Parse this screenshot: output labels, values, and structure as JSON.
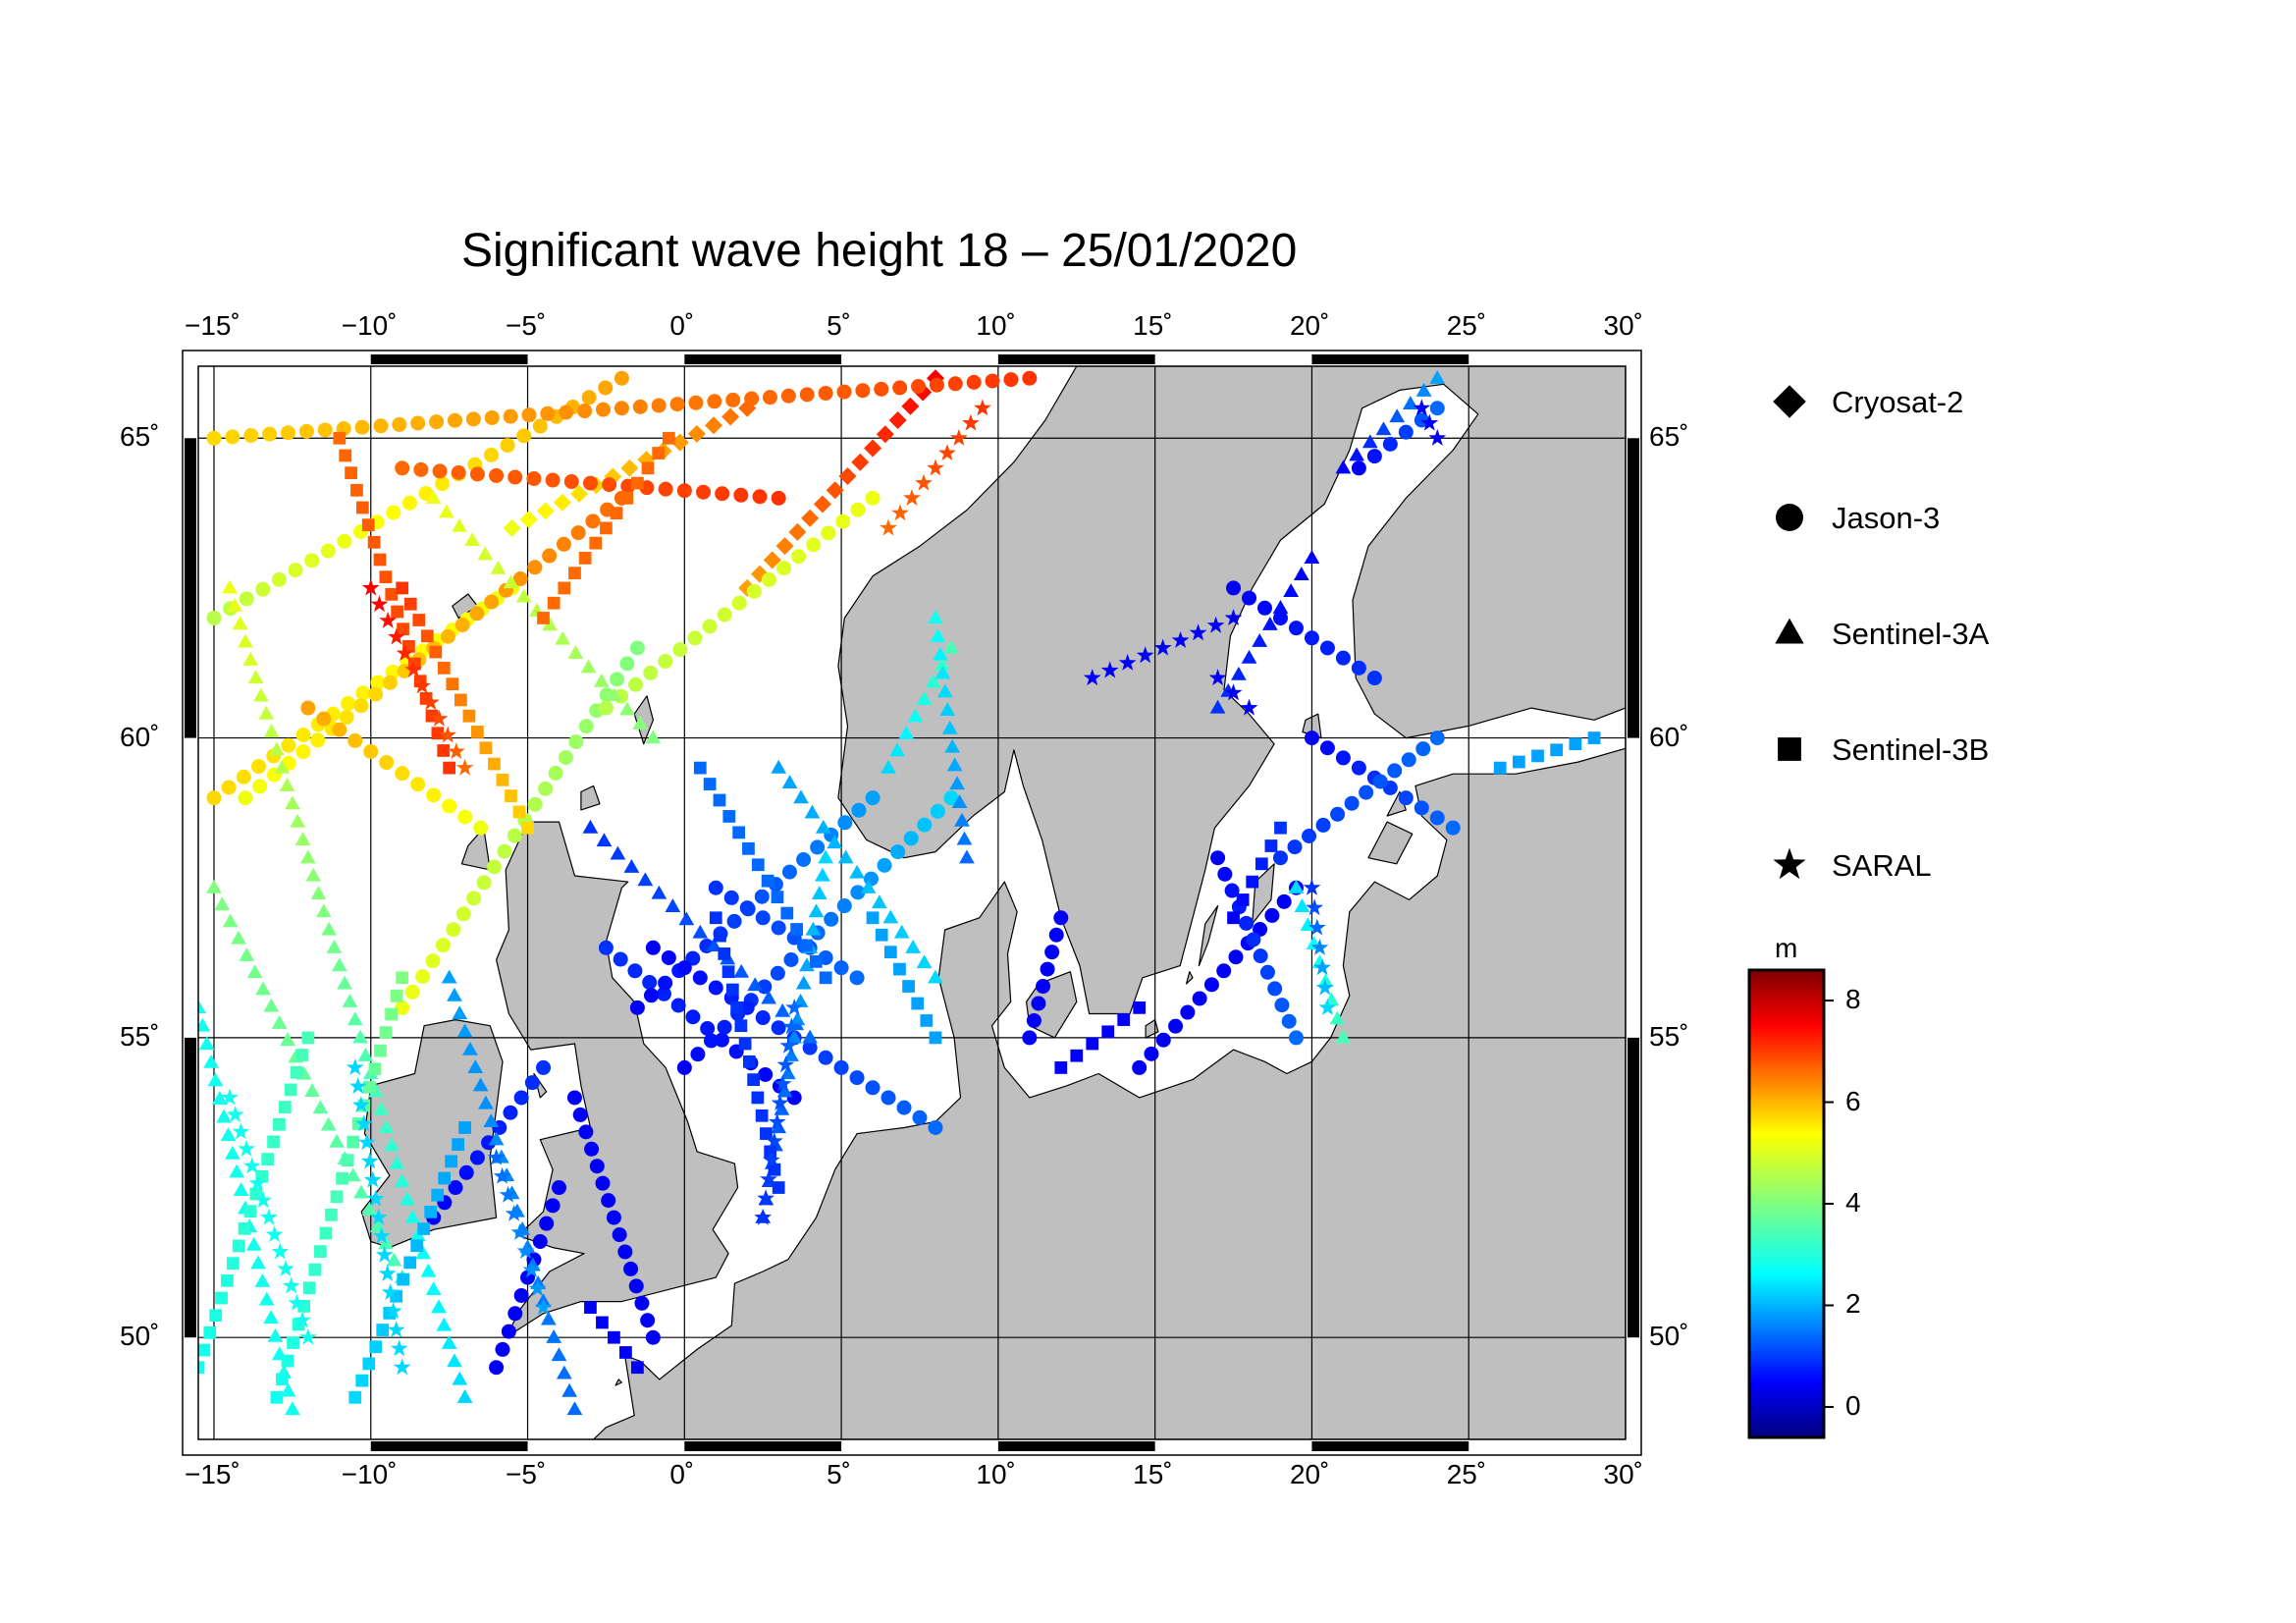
{
  "title": "Significant wave height 18 – 25/01/2020",
  "map": {
    "lon_range": [
      -15.5,
      30.0
    ],
    "lat_range": [
      48.3,
      66.2
    ],
    "lon_ticks": [
      -15,
      -10,
      -5,
      0,
      5,
      10,
      15,
      20,
      25,
      30
    ],
    "lat_ticks": [
      50,
      55,
      60,
      65
    ],
    "lon_tick_labels": [
      "−15˚",
      "−10˚",
      "−5˚",
      "0˚",
      "5˚",
      "10˚",
      "15˚",
      "20˚",
      "25˚",
      "30˚"
    ],
    "lat_tick_labels": [
      "50˚",
      "55˚",
      "60˚",
      "65˚"
    ],
    "land_color": "#bfbfbf",
    "sea_color": "#ffffff",
    "frame_color": "#000000",
    "grid": true
  },
  "legend": {
    "items": [
      {
        "label": "Cryosat-2",
        "marker": "diamond"
      },
      {
        "label": "Jason-3",
        "marker": "circle"
      },
      {
        "label": "Sentinel-3A",
        "marker": "triangle"
      },
      {
        "label": "Sentinel-3B",
        "marker": "square"
      },
      {
        "label": "SARAL",
        "marker": "star"
      }
    ]
  },
  "colorbar": {
    "unit": "m",
    "min": -0.6,
    "max": 8.6,
    "ticks": [
      0,
      2,
      4,
      6,
      8
    ],
    "tick_labels": [
      "0",
      "2",
      "4",
      "6",
      "8"
    ],
    "colormap": "jet"
  },
  "chart_data": {
    "type": "scatter",
    "title": "Significant wave height 18 – 25/01/2020",
    "value_unit": "m",
    "series": [
      {
        "name": "Cryosat-2",
        "marker": "diamond",
        "tracks": [
          {
            "from": [
              2.0,
              62.5
            ],
            "to": [
              8.0,
              66.0
            ],
            "hs": [
              6.0,
              7.5
            ]
          },
          {
            "from": [
              -5.5,
              63.5
            ],
            "to": [
              2.0,
              65.5
            ],
            "hs": [
              5.0,
              6.5
            ]
          }
        ]
      },
      {
        "name": "Jason-3",
        "marker": "circle",
        "tracks": [
          {
            "from": [
              -15.0,
              59.0
            ],
            "to": [
              -5.5,
              62.5
            ],
            "hs": [
              5.5,
              5.0
            ]
          },
          {
            "from": [
              -15.0,
              62.0
            ],
            "to": [
              -2.0,
              66.0
            ],
            "hs": [
              4.5,
              6.0
            ]
          },
          {
            "from": [
              -15.0,
              65.0
            ],
            "to": [
              11.0,
              66.0
            ],
            "hs": [
              5.5,
              7.0
            ]
          },
          {
            "from": [
              -9.0,
              64.5
            ],
            "to": [
              3.0,
              64.0
            ],
            "hs": [
              6.5,
              7.0
            ]
          },
          {
            "from": [
              -14.0,
              59.0
            ],
            "to": [
              -2.0,
              64.0
            ],
            "hs": [
              5.0,
              6.5
            ]
          },
          {
            "from": [
              -12.0,
              60.5
            ],
            "to": [
              -6.5,
              58.5
            ],
            "hs": [
              6.0,
              5.0
            ]
          },
          {
            "from": [
              -9.0,
              55.5
            ],
            "to": [
              -1.5,
              61.5
            ],
            "hs": [
              5.0,
              4.0
            ]
          },
          {
            "from": [
              -2.5,
              60.5
            ],
            "to": [
              6.0,
              64.0
            ],
            "hs": [
              4.5,
              5.0
            ]
          },
          {
            "from": [
              -2.5,
              56.5
            ],
            "to": [
              3.5,
              54.0
            ],
            "hs": [
              1.0,
              0.5
            ]
          },
          {
            "from": [
              -1.5,
              55.5
            ],
            "to": [
              6.0,
              59.0
            ],
            "hs": [
              0.5,
              2.0
            ]
          },
          {
            "from": [
              0.0,
              54.5
            ],
            "to": [
              8.5,
              59.0
            ],
            "hs": [
              0.5,
              2.5
            ]
          },
          {
            "from": [
              -1.0,
              56.5
            ],
            "to": [
              8.0,
              53.5
            ],
            "hs": [
              0.5,
              1.5
            ]
          },
          {
            "from": [
              1.0,
              57.5
            ],
            "to": [
              5.5,
              56.0
            ],
            "hs": [
              1.0,
              1.5
            ]
          },
          {
            "from": [
              -8.0,
              52.0
            ],
            "to": [
              -4.5,
              54.5
            ],
            "hs": [
              0.5,
              1.0
            ]
          },
          {
            "from": [
              -6.0,
              49.5
            ],
            "to": [
              -4.0,
              52.5
            ],
            "hs": [
              0.5,
              0.5
            ]
          },
          {
            "from": [
              11.0,
              55.0
            ],
            "to": [
              12.0,
              57.0
            ],
            "hs": [
              0.5,
              0.5
            ]
          },
          {
            "from": [
              14.5,
              54.5
            ],
            "to": [
              19.5,
              57.5
            ],
            "hs": [
              0.5,
              0.5
            ]
          },
          {
            "from": [
              17.0,
              58.0
            ],
            "to": [
              19.5,
              55.0
            ],
            "hs": [
              0.5,
              1.5
            ]
          },
          {
            "from": [
              17.5,
              62.5
            ],
            "to": [
              22.0,
              61.0
            ],
            "hs": [
              0.5,
              1.0
            ]
          },
          {
            "from": [
              20.0,
              60.0
            ],
            "to": [
              24.5,
              58.5
            ],
            "hs": [
              0.5,
              1.5
            ]
          },
          {
            "from": [
              21.5,
              64.5
            ],
            "to": [
              24.0,
              65.5
            ],
            "hs": [
              0.5,
              1.5
            ]
          },
          {
            "from": [
              19.0,
              58.0
            ],
            "to": [
              24.0,
              60.0
            ],
            "hs": [
              1.0,
              1.5
            ]
          },
          {
            "from": [
              -3.5,
              54.0
            ],
            "to": [
              -1.0,
              50.0
            ],
            "hs": [
              0.5,
              0.5
            ]
          }
        ]
      },
      {
        "name": "Sentinel-3A",
        "marker": "triangle",
        "tracks": [
          {
            "from": [
              -15.0,
              57.5
            ],
            "to": [
              -9.0,
              51.0
            ],
            "hs": [
              4.0,
              3.5
            ]
          },
          {
            "from": [
              -15.5,
              55.5
            ],
            "to": [
              -12.5,
              48.8
            ],
            "hs": [
              3.0,
              3.0
            ]
          },
          {
            "from": [
              -14.5,
              62.5
            ],
            "to": [
              -7.0,
              49.0
            ],
            "hs": [
              5.0,
              2.5
            ]
          },
          {
            "from": [
              -7.5,
              56.0
            ],
            "to": [
              -3.5,
              48.8
            ],
            "hs": [
              2.0,
              1.5
            ]
          },
          {
            "from": [
              -3.0,
              58.5
            ],
            "to": [
              4.0,
              55.0
            ],
            "hs": [
              1.0,
              1.5
            ]
          },
          {
            "from": [
              3.0,
              59.5
            ],
            "to": [
              8.0,
              56.0
            ],
            "hs": [
              2.0,
              2.5
            ]
          },
          {
            "from": [
              4.5,
              58.0
            ],
            "to": [
              2.5,
              52.0
            ],
            "hs": [
              2.5,
              1.0
            ]
          },
          {
            "from": [
              6.5,
              59.5
            ],
            "to": [
              8.5,
              61.5
            ],
            "hs": [
              2.5,
              3.5
            ]
          },
          {
            "from": [
              9.0,
              58.0
            ],
            "to": [
              8.0,
              62.0
            ],
            "hs": [
              1.5,
              3.0
            ]
          },
          {
            "from": [
              21.0,
              64.5
            ],
            "to": [
              24.0,
              66.0
            ],
            "hs": [
              0.5,
              2.0
            ]
          },
          {
            "from": [
              17.0,
              60.5
            ],
            "to": [
              20.0,
              63.0
            ],
            "hs": [
              1.0,
              0.5
            ]
          },
          {
            "from": [
              19.5,
              57.5
            ],
            "to": [
              21.0,
              55.0
            ],
            "hs": [
              2.5,
              3.5
            ]
          },
          {
            "from": [
              -8.0,
              64.0
            ],
            "to": [
              -1.0,
              60.0
            ],
            "hs": [
              5.0,
              4.0
            ]
          }
        ]
      },
      {
        "name": "Sentinel-3B",
        "marker": "square",
        "tracks": [
          {
            "from": [
              -15.5,
              49.5
            ],
            "to": [
              -12.0,
              55.0
            ],
            "hs": [
              3.0,
              3.5
            ]
          },
          {
            "from": [
              -10.5,
              49.0
            ],
            "to": [
              -7.0,
              53.5
            ],
            "hs": [
              2.5,
              2.0
            ]
          },
          {
            "from": [
              -13.0,
              49.0
            ],
            "to": [
              -9.0,
              56.0
            ],
            "hs": [
              3.0,
              4.0
            ]
          },
          {
            "from": [
              -11.0,
              65.0
            ],
            "to": [
              -7.5,
              59.5
            ],
            "hs": [
              6.5,
              7.0
            ]
          },
          {
            "from": [
              -9.0,
              62.5
            ],
            "to": [
              -5.0,
              58.5
            ],
            "hs": [
              7.0,
              5.5
            ]
          },
          {
            "from": [
              -4.5,
              62.0
            ],
            "to": [
              -0.5,
              65.0
            ],
            "hs": [
              6.5,
              6.5
            ]
          },
          {
            "from": [
              1.0,
              57.0
            ],
            "to": [
              3.0,
              52.5
            ],
            "hs": [
              1.0,
              1.0
            ]
          },
          {
            "from": [
              0.5,
              59.5
            ],
            "to": [
              4.5,
              56.0
            ],
            "hs": [
              1.5,
              1.5
            ]
          },
          {
            "from": [
              6.0,
              57.0
            ],
            "to": [
              8.0,
              55.0
            ],
            "hs": [
              2.0,
              2.0
            ]
          },
          {
            "from": [
              12.0,
              54.5
            ],
            "to": [
              14.5,
              55.5
            ],
            "hs": [
              0.5,
              0.5
            ]
          },
          {
            "from": [
              17.5,
              57.0
            ],
            "to": [
              19.0,
              58.5
            ],
            "hs": [
              0.5,
              1.0
            ]
          },
          {
            "from": [
              26.0,
              59.5
            ],
            "to": [
              29.0,
              60.0
            ],
            "hs": [
              2.0,
              2.0
            ]
          },
          {
            "from": [
              -3.0,
              50.5
            ],
            "to": [
              -1.5,
              49.5
            ],
            "hs": [
              0.5,
              0.5
            ]
          }
        ]
      },
      {
        "name": "SARAL",
        "marker": "star",
        "tracks": [
          {
            "from": [
              -14.5,
              54.0
            ],
            "to": [
              -12.0,
              50.0
            ],
            "hs": [
              3.0,
              3.0
            ]
          },
          {
            "from": [
              -10.0,
              62.5
            ],
            "to": [
              -7.0,
              59.5
            ],
            "hs": [
              7.5,
              6.5
            ]
          },
          {
            "from": [
              -10.5,
              54.5
            ],
            "to": [
              -9.0,
              49.5
            ],
            "hs": [
              2.5,
              2.5
            ]
          },
          {
            "from": [
              -6.0,
              53.0
            ],
            "to": [
              -4.5,
              50.5
            ],
            "hs": [
              1.5,
              2.0
            ]
          },
          {
            "from": [
              3.5,
              55.5
            ],
            "to": [
              2.5,
              52.0
            ],
            "hs": [
              1.5,
              1.0
            ]
          },
          {
            "from": [
              13.0,
              61.0
            ],
            "to": [
              17.5,
              62.0
            ],
            "hs": [
              0.5,
              0.5
            ]
          },
          {
            "from": [
              17.0,
              61.0
            ],
            "to": [
              18.0,
              60.5
            ],
            "hs": [
              0.5,
              0.5
            ]
          },
          {
            "from": [
              20.0,
              57.5
            ],
            "to": [
              20.5,
              55.5
            ],
            "hs": [
              1.0,
              2.5
            ]
          },
          {
            "from": [
              23.5,
              65.5
            ],
            "to": [
              24.0,
              65.0
            ],
            "hs": [
              0.5,
              0.5
            ]
          },
          {
            "from": [
              6.5,
              63.5
            ],
            "to": [
              9.5,
              65.5
            ],
            "hs": [
              6.5,
              7.0
            ]
          }
        ]
      }
    ]
  }
}
